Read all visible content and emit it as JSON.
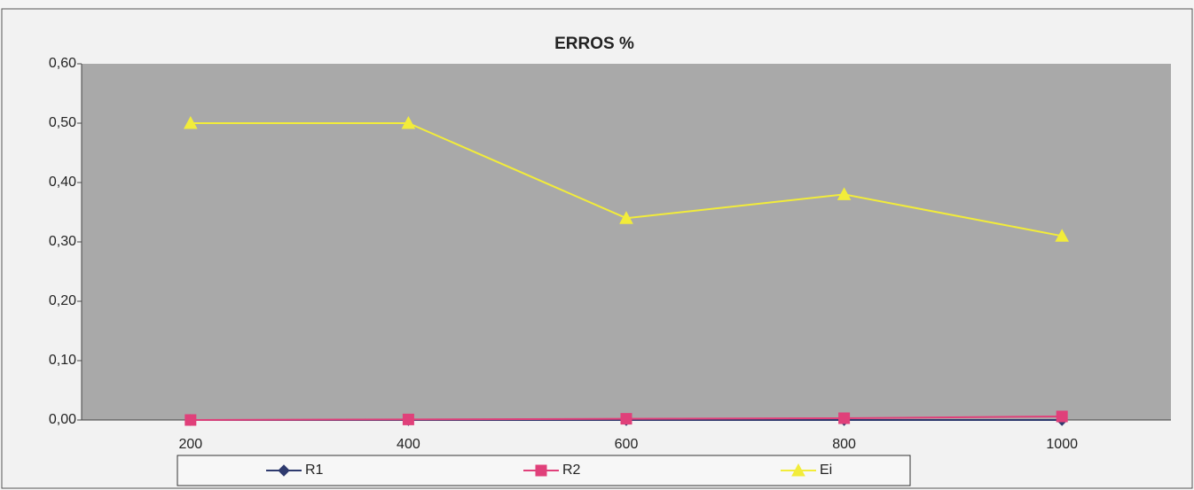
{
  "chart_data": {
    "type": "line",
    "title": "ERROS %",
    "categories": [
      "200",
      "400",
      "600",
      "800",
      "1000"
    ],
    "series": [
      {
        "name": "R1",
        "color": "#2e3a6e",
        "marker": "diamond",
        "values": [
          0,
          0,
          0,
          0,
          0
        ]
      },
      {
        "name": "R2",
        "color": "#e0407a",
        "marker": "square",
        "values": [
          0,
          0.001,
          0.002,
          0.003,
          0.006
        ]
      },
      {
        "name": "Ei",
        "color": "#f2ec3a",
        "marker": "triangle",
        "values": [
          0.5,
          0.5,
          0.34,
          0.38,
          0.31
        ]
      }
    ],
    "ylim": [
      0,
      0.6
    ],
    "yticks": [
      {
        "value": 0,
        "label": "0,00"
      },
      {
        "value": 0.1,
        "label": "0,10"
      },
      {
        "value": 0.2,
        "label": "0,20"
      },
      {
        "value": 0.3,
        "label": "0,30"
      },
      {
        "value": 0.4,
        "label": "0,40"
      },
      {
        "value": 0.5,
        "label": "0,50"
      },
      {
        "value": 0.6,
        "label": "0,60"
      }
    ],
    "legend": "bottom"
  }
}
